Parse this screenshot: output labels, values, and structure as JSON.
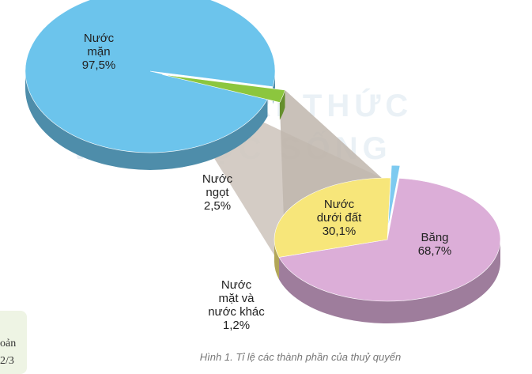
{
  "watermark": {
    "line1": "KẾT NỐI TRI THỨC",
    "line2": "VỚI CUỘC SỐNG"
  },
  "caption": "Hình 1. Tỉ lệ các thành phần của thuỷ quyển",
  "side_fragment": {
    "line1": "oản",
    "line2": "2/3",
    "background": "#eef4e4"
  },
  "chart_data": [
    {
      "type": "pie",
      "title": "",
      "slices": [
        {
          "label_lines": [
            "Nước",
            "mặn"
          ],
          "value_label": "97,5%",
          "value": 97.5,
          "color": "#6cc4ec"
        },
        {
          "label_lines": [
            "Nước",
            "ngọt"
          ],
          "value_label": "2,5%",
          "value": 2.5,
          "color": "#8cc63e"
        }
      ]
    },
    {
      "type": "pie",
      "title": "",
      "slices": [
        {
          "label_lines": [
            "Băng"
          ],
          "value_label": "68,7%",
          "value": 68.7,
          "color": "#dcaed8"
        },
        {
          "label_lines": [
            "Nước",
            "dưới đất"
          ],
          "value_label": "30,1%",
          "value": 30.1,
          "color": "#f7e67a"
        },
        {
          "label_lines": [
            "Nước",
            "mặt và",
            "nước khác"
          ],
          "value_label": "1,2%",
          "value": 1.2,
          "color": "#7dcaf0"
        }
      ]
    }
  ]
}
